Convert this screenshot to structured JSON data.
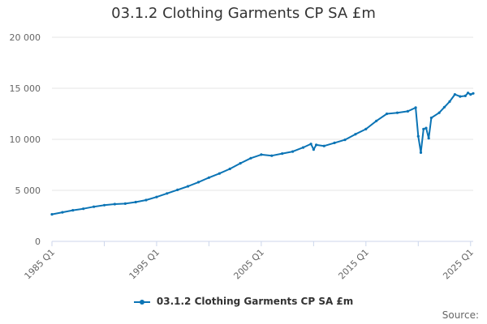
{
  "chart_data": {
    "type": "line",
    "title": "03.1.2 Clothing Garments CP SA £m",
    "xlabel": "",
    "ylabel": "",
    "ylim": [
      0,
      20000
    ],
    "y_ticks": [
      "0",
      "5 000",
      "10 000",
      "15 000",
      "20 000"
    ],
    "y_tick_values": [
      0,
      5000,
      10000,
      15000,
      20000
    ],
    "x_tick_labels": [
      "1985 Q1",
      "1995 Q1",
      "2005 Q1",
      "2015 Q1",
      "2025 Q1"
    ],
    "x_tick_values": [
      1985,
      1995,
      2005,
      2015,
      2025
    ],
    "xlim": [
      1985,
      2025.25
    ],
    "grid": true,
    "legend_position": "bottom",
    "series": [
      {
        "name": "03.1.2 Clothing Garments CP SA £m",
        "color": "#0b74b5",
        "points": [
          [
            1985.0,
            2650
          ],
          [
            1986.0,
            2850
          ],
          [
            1987.0,
            3050
          ],
          [
            1988.0,
            3200
          ],
          [
            1989.0,
            3400
          ],
          [
            1990.0,
            3550
          ],
          [
            1991.0,
            3650
          ],
          [
            1992.0,
            3700
          ],
          [
            1993.0,
            3850
          ],
          [
            1994.0,
            4050
          ],
          [
            1995.0,
            4350
          ],
          [
            1996.0,
            4700
          ],
          [
            1997.0,
            5050
          ],
          [
            1998.0,
            5400
          ],
          [
            1999.0,
            5800
          ],
          [
            2000.0,
            6250
          ],
          [
            2001.0,
            6650
          ],
          [
            2002.0,
            7100
          ],
          [
            2003.0,
            7650
          ],
          [
            2004.0,
            8150
          ],
          [
            2005.0,
            8500
          ],
          [
            2006.0,
            8400
          ],
          [
            2007.0,
            8600
          ],
          [
            2008.0,
            8800
          ],
          [
            2009.0,
            9200
          ],
          [
            2009.75,
            9550
          ],
          [
            2010.0,
            9000
          ],
          [
            2010.25,
            9450
          ],
          [
            2011.0,
            9350
          ],
          [
            2012.0,
            9650
          ],
          [
            2013.0,
            9950
          ],
          [
            2014.0,
            10500
          ],
          [
            2015.0,
            11000
          ],
          [
            2016.0,
            11800
          ],
          [
            2017.0,
            12500
          ],
          [
            2018.0,
            12600
          ],
          [
            2019.0,
            12750
          ],
          [
            2019.75,
            13100
          ],
          [
            2020.0,
            10300
          ],
          [
            2020.25,
            8700
          ],
          [
            2020.5,
            11000
          ],
          [
            2020.75,
            11100
          ],
          [
            2021.0,
            10100
          ],
          [
            2021.25,
            12100
          ],
          [
            2022.0,
            12600
          ],
          [
            2022.5,
            13150
          ],
          [
            2023.0,
            13700
          ],
          [
            2023.5,
            14400
          ],
          [
            2024.0,
            14200
          ],
          [
            2024.5,
            14250
          ],
          [
            2024.75,
            14550
          ],
          [
            2025.0,
            14400
          ],
          [
            2025.25,
            14500
          ]
        ]
      }
    ]
  },
  "footer": {
    "source_label": "Source:"
  }
}
